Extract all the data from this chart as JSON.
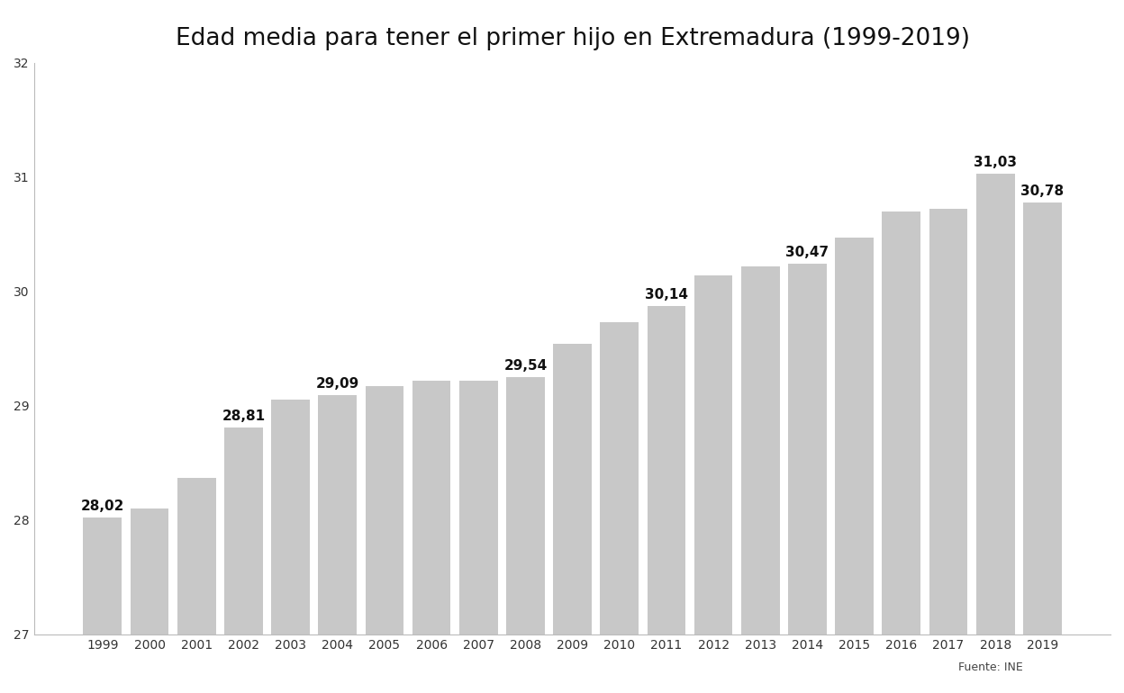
{
  "title": "Edad media para tener el primer hijo en Extremadura (1999-2019)",
  "years": [
    "1999",
    "2000",
    "2001",
    "2002",
    "2003",
    "2004",
    "2005",
    "2006",
    "2007",
    "2008",
    "2009",
    "2010",
    "2011",
    "2012",
    "2013",
    "2014",
    "2015",
    "2016",
    "2017",
    "2018",
    "2019"
  ],
  "values": [
    28.02,
    28.1,
    28.37,
    28.81,
    29.05,
    29.09,
    29.17,
    29.22,
    29.22,
    29.25,
    29.54,
    29.73,
    29.87,
    30.14,
    30.22,
    30.24,
    30.47,
    30.7,
    30.72,
    31.03,
    30.78
  ],
  "labeled_indices": [
    0,
    3,
    5,
    9,
    12,
    15,
    19,
    20
  ],
  "labeled_texts": [
    "28,02",
    "28,81",
    "29,09",
    "29,54",
    "30,14",
    "30,47",
    "31,03",
    "30,78"
  ],
  "bar_color": "#c8c8c8",
  "background_color": "#ffffff",
  "ylim_min": 27.0,
  "ylim_max": 32.0,
  "yticks": [
    27,
    28,
    29,
    30,
    31,
    32
  ],
  "source_text": "Fuente: INE",
  "title_fontsize": 19,
  "tick_fontsize": 10,
  "annotation_fontsize": 11,
  "source_fontsize": 9
}
